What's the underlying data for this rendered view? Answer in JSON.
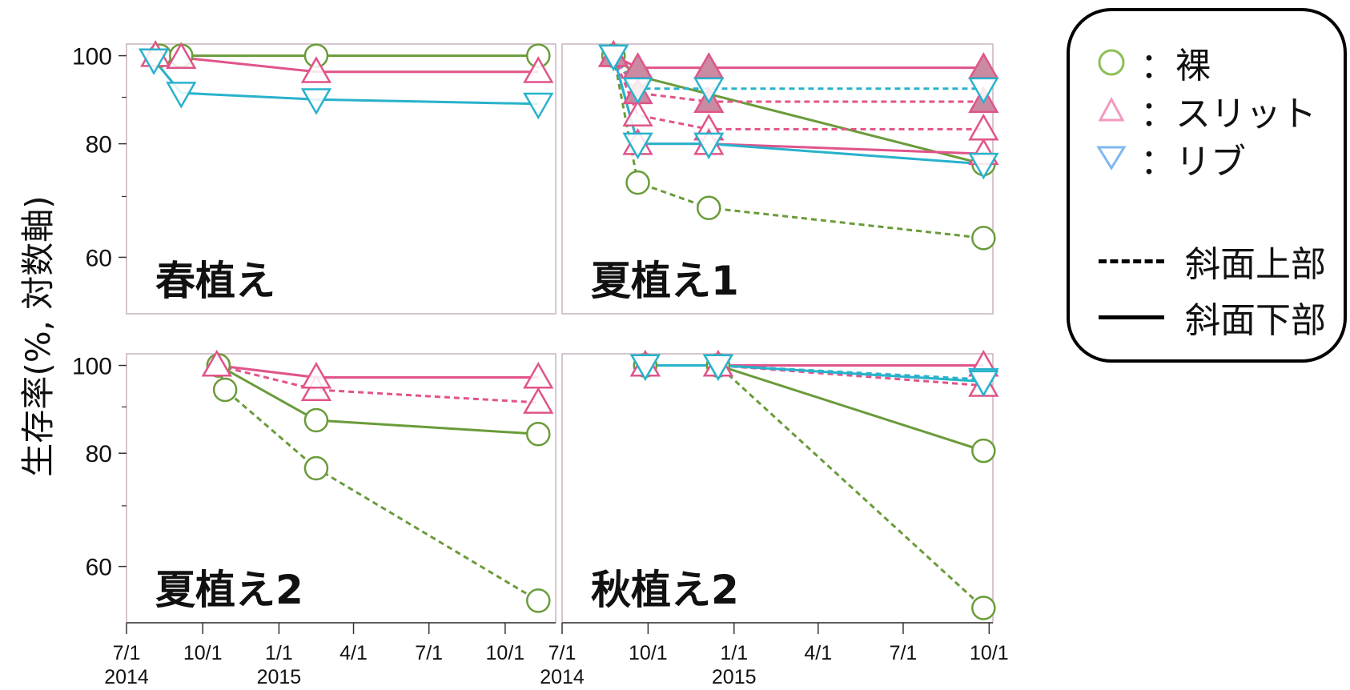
{
  "y_axis_label": "生存率(%, 対数軸)",
  "x_tick_labels": [
    {
      "month": "7/1",
      "year": "2014"
    },
    {
      "month": "10/1",
      "year": ""
    },
    {
      "month": "1/1",
      "year": "2015"
    },
    {
      "month": "4/1",
      "year": ""
    },
    {
      "month": "7/1",
      "year": ""
    },
    {
      "month": "10/1",
      "year": ""
    }
  ],
  "colors": {
    "bare": "#6a9b3a",
    "slit": "#e0548a",
    "slit_fill": "#c98aa2",
    "rib": "#28b2cc",
    "panel_border": "#c9b3c1"
  },
  "legend": {
    "items": [
      {
        "symbol": "circle-icon",
        "label": "：裸",
        "color": "#8cbf57"
      },
      {
        "symbol": "triangle-up-icon",
        "label": "：スリット",
        "color": "#f39ac0"
      },
      {
        "symbol": "triangle-down-icon",
        "label": "：リブ",
        "color": "#7fb8f0"
      }
    ],
    "lines": [
      {
        "style": "dashed",
        "label": "斜面上部"
      },
      {
        "style": "solid",
        "label": "斜面下部"
      }
    ]
  },
  "chart_data": [
    {
      "type": "line",
      "title": "春植え",
      "y_scale": "log",
      "ylim": [
        52,
        103
      ],
      "yticks": [
        60,
        80,
        100
      ],
      "xlim": [
        "2014-07-01",
        "2015-12-01"
      ],
      "series": [
        {
          "group": "bare",
          "position": "lower",
          "style": "solid",
          "marker": "circle",
          "points": [
            [
              "2014-08-10",
              100
            ],
            [
              "2014-09-05",
              100
            ],
            [
              "2015-02-15",
              100
            ],
            [
              "2015-11-10",
              100
            ]
          ]
        },
        {
          "group": "slit",
          "position": "lower",
          "style": "solid",
          "marker": "triangle-up",
          "points": [
            [
              "2014-08-05",
              100
            ],
            [
              "2014-09-05",
              99.5
            ],
            [
              "2015-02-15",
              96
            ],
            [
              "2015-11-10",
              96
            ]
          ]
        },
        {
          "group": "rib",
          "position": "lower",
          "style": "solid",
          "marker": "triangle-down",
          "points": [
            [
              "2014-08-03",
              99
            ],
            [
              "2014-09-05",
              91
            ],
            [
              "2015-02-15",
              89.5
            ],
            [
              "2015-11-10",
              88.5
            ]
          ]
        }
      ]
    },
    {
      "type": "line",
      "title": "夏植え1",
      "y_scale": "log",
      "ylim": [
        52,
        103
      ],
      "yticks": [
        60,
        80,
        100
      ],
      "xlim": [
        "2014-07-01",
        "2015-10-05"
      ],
      "series": [
        {
          "group": "bare",
          "position": "upper",
          "style": "dashed",
          "marker": "circle",
          "points": [
            [
              "2014-08-25",
              100
            ],
            [
              "2014-09-20",
              72.5
            ],
            [
              "2014-12-05",
              68
            ],
            [
              "2015-09-25",
              63
            ]
          ]
        },
        {
          "group": "bare",
          "position": "lower",
          "style": "solid",
          "marker": "circle",
          "points": [
            [
              "2014-08-25",
              100
            ],
            [
              "2014-09-20",
              95
            ],
            [
              "2015-09-25",
              76
            ]
          ]
        },
        {
          "group": "slit",
          "position": "upper",
          "style": "dashed",
          "marker": "triangle-up",
          "points": [
            [
              "2014-08-25",
              100
            ],
            [
              "2014-09-20",
              86
            ],
            [
              "2014-12-05",
              83
            ],
            [
              "2015-09-25",
              83
            ]
          ]
        },
        {
          "group": "slit",
          "position": "upper",
          "style": "dashed",
          "marker": "triangle-up-filled",
          "points": [
            [
              "2014-08-25",
              100
            ],
            [
              "2014-09-20",
              91
            ],
            [
              "2014-12-05",
              89
            ],
            [
              "2015-09-25",
              89
            ]
          ]
        },
        {
          "group": "slit",
          "position": "lower",
          "style": "solid",
          "marker": "triangle-up",
          "points": [
            [
              "2014-08-25",
              100
            ],
            [
              "2014-09-20",
              80
            ],
            [
              "2014-12-05",
              80
            ],
            [
              "2015-09-25",
              78
            ]
          ]
        },
        {
          "group": "slit",
          "position": "lower",
          "style": "solid",
          "marker": "triangle-up-filled",
          "points": [
            [
              "2014-08-25",
              100
            ],
            [
              "2014-09-20",
              97
            ],
            [
              "2014-12-05",
              97
            ],
            [
              "2015-09-25",
              97
            ]
          ]
        },
        {
          "group": "rib",
          "position": "upper",
          "style": "dashed",
          "marker": "triangle-down",
          "points": [
            [
              "2014-08-25",
              100
            ],
            [
              "2014-09-20",
              92
            ],
            [
              "2014-12-05",
              92
            ],
            [
              "2015-09-25",
              92
            ]
          ]
        },
        {
          "group": "rib",
          "position": "lower",
          "style": "solid",
          "marker": "triangle-down",
          "points": [
            [
              "2014-08-25",
              100
            ],
            [
              "2014-09-20",
              80
            ],
            [
              "2014-12-05",
              80
            ],
            [
              "2015-09-25",
              76
            ]
          ]
        }
      ]
    },
    {
      "type": "line",
      "title": "夏植え2",
      "y_scale": "log",
      "ylim": [
        52,
        103
      ],
      "yticks": [
        60,
        80,
        100
      ],
      "xlim": [
        "2014-07-01",
        "2015-12-01"
      ],
      "series": [
        {
          "group": "bare",
          "position": "upper",
          "style": "dashed",
          "marker": "circle",
          "points": [
            [
              "2014-10-20",
              100
            ],
            [
              "2014-10-28",
              94
            ],
            [
              "2015-02-15",
              77
            ],
            [
              "2015-11-10",
              55
            ]
          ]
        },
        {
          "group": "bare",
          "position": "lower",
          "style": "solid",
          "marker": "circle",
          "points": [
            [
              "2014-10-20",
              100
            ],
            [
              "2015-02-15",
              87
            ],
            [
              "2015-11-10",
              84
            ]
          ]
        },
        {
          "group": "slit",
          "position": "upper",
          "style": "dashed",
          "marker": "triangle-up",
          "points": [
            [
              "2014-10-18",
              100
            ],
            [
              "2015-02-15",
              94
            ],
            [
              "2015-11-10",
              91
            ]
          ]
        },
        {
          "group": "slit",
          "position": "lower",
          "style": "solid",
          "marker": "triangle-up",
          "points": [
            [
              "2014-10-18",
              100
            ],
            [
              "2015-02-15",
              97
            ],
            [
              "2015-11-10",
              97
            ]
          ]
        }
      ]
    },
    {
      "type": "line",
      "title": "秋植え2",
      "y_scale": "log",
      "ylim": [
        52,
        103
      ],
      "yticks": [
        60,
        80,
        100
      ],
      "xlim": [
        "2014-07-01",
        "2015-10-05"
      ],
      "series": [
        {
          "group": "bare",
          "position": "upper",
          "style": "dashed",
          "marker": "circle",
          "points": [
            [
              "2014-09-28",
              100
            ],
            [
              "2014-12-15",
              100
            ],
            [
              "2015-09-25",
              54
            ]
          ]
        },
        {
          "group": "bare",
          "position": "lower",
          "style": "solid",
          "marker": "circle",
          "points": [
            [
              "2014-09-28",
              100
            ],
            [
              "2014-12-15",
              100
            ],
            [
              "2015-09-25",
              80.5
            ]
          ]
        },
        {
          "group": "slit",
          "position": "upper",
          "style": "dashed",
          "marker": "triangle-up",
          "points": [
            [
              "2014-09-28",
              100
            ],
            [
              "2014-12-15",
              100
            ],
            [
              "2015-09-25",
              95
            ]
          ]
        },
        {
          "group": "slit",
          "position": "lower",
          "style": "solid",
          "marker": "triangle-up",
          "points": [
            [
              "2014-09-28",
              100
            ],
            [
              "2014-12-15",
              100
            ],
            [
              "2015-09-25",
              100
            ]
          ]
        },
        {
          "group": "rib",
          "position": "upper",
          "style": "dashed",
          "marker": "triangle-down",
          "points": [
            [
              "2014-09-28",
              100
            ],
            [
              "2014-12-15",
              100
            ],
            [
              "2015-09-25",
              96.5
            ]
          ]
        },
        {
          "group": "rib",
          "position": "lower",
          "style": "solid",
          "marker": "triangle-down",
          "points": [
            [
              "2014-09-28",
              100
            ],
            [
              "2014-12-15",
              100
            ],
            [
              "2015-09-25",
              96
            ]
          ]
        }
      ]
    }
  ]
}
